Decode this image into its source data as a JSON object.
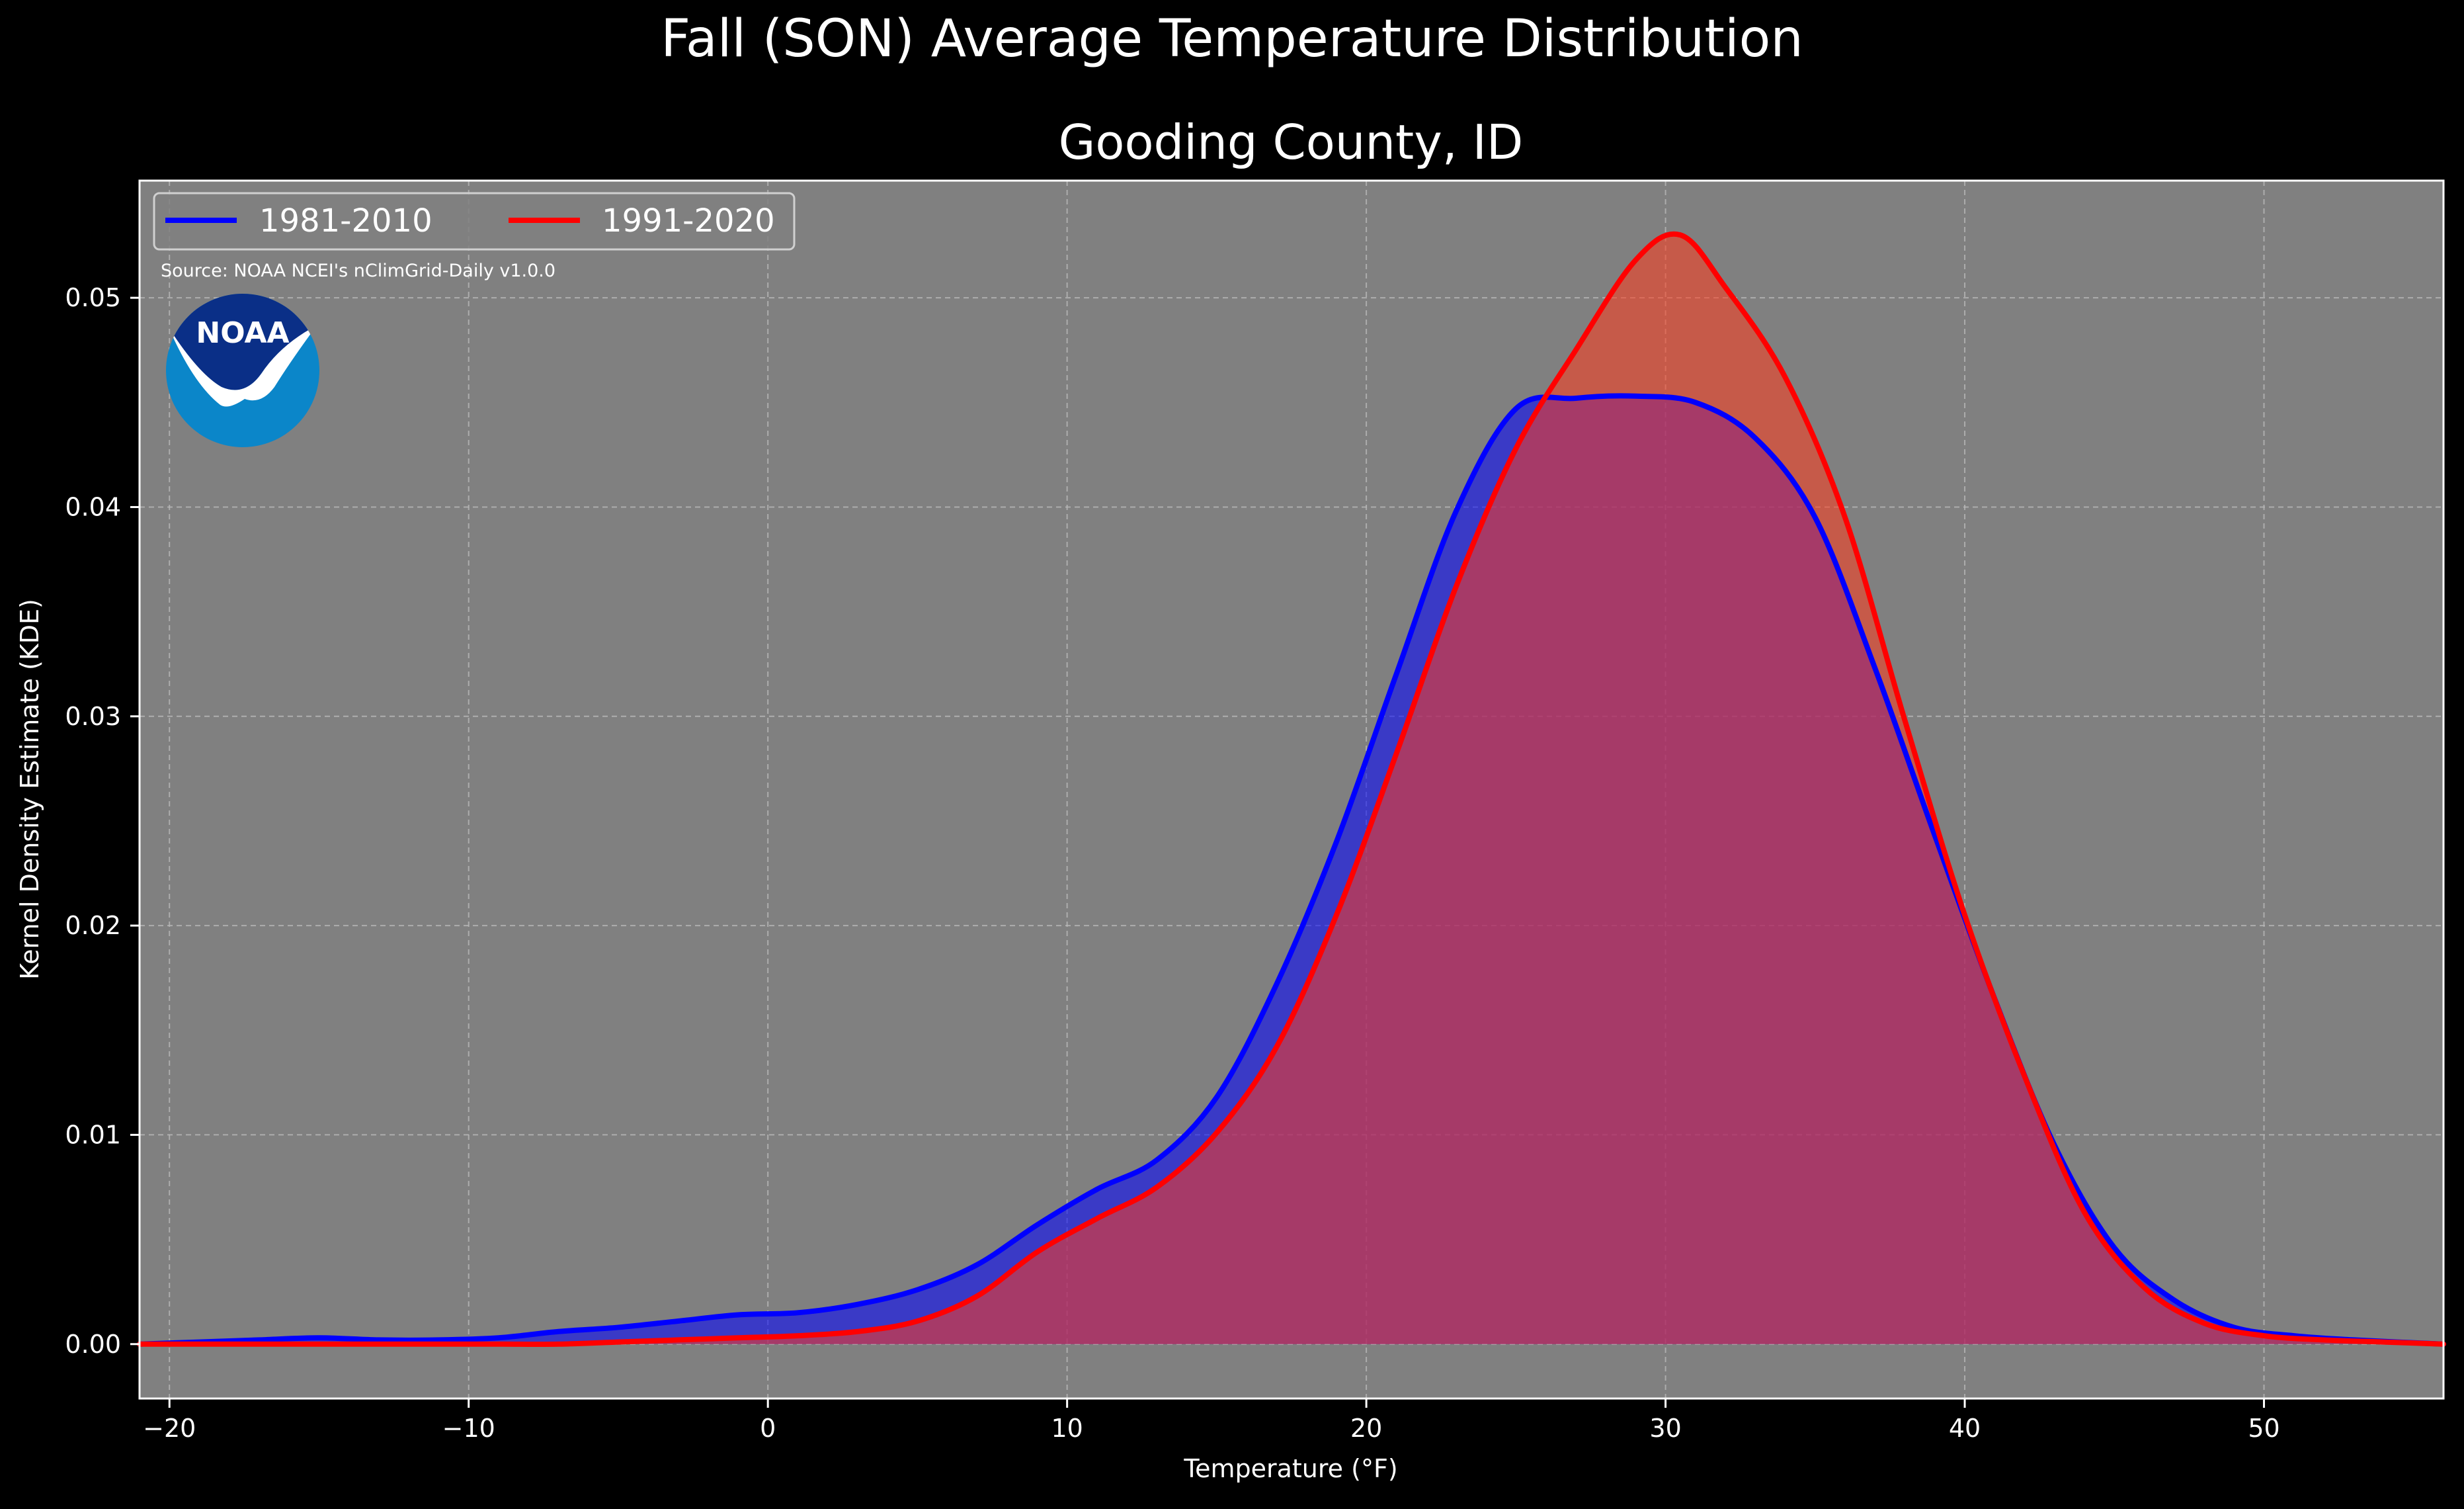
{
  "figure": {
    "suptitle": "Fall (SON) Average Temperature Distribution",
    "source_note": "Source: NOAA NCEI's nClimGrid-Daily v1.0.0",
    "logo": {
      "text": "NOAA",
      "icon": "noaa-logo",
      "colors": {
        "top": "#0a2f87",
        "bottom": "#0b86c9",
        "bird": "#ffffff"
      }
    },
    "colors": {
      "figure_background": "#000000",
      "plot_background": "#808080",
      "grid": "#b8b8b8",
      "text": "#ffffff"
    }
  },
  "chart_data": {
    "type": "area",
    "title": "Gooding County, ID",
    "xlabel": "Temperature (°F)",
    "ylabel": "Kernel Density Estimate (KDE)",
    "xlim": [
      -21,
      56
    ],
    "ylim": [
      -0.0026,
      0.0556
    ],
    "xticks": [
      -20,
      -10,
      0,
      10,
      20,
      30,
      40,
      50
    ],
    "xtick_labels": [
      "−20",
      "−10",
      "0",
      "10",
      "20",
      "30",
      "40",
      "50"
    ],
    "yticks": [
      0.0,
      0.01,
      0.02,
      0.03,
      0.04,
      0.05
    ],
    "ytick_labels": [
      "0.00",
      "0.01",
      "0.02",
      "0.03",
      "0.04",
      "0.05"
    ],
    "grid": true,
    "legend": {
      "placement": "top-left",
      "columns": 2
    },
    "series": [
      {
        "name": "1981-2010",
        "line_color": "#0000ff",
        "fill_color": "#0000ff",
        "x": [
          -21,
          -19,
          -17,
          -15,
          -13,
          -11,
          -9,
          -7,
          -5,
          -3,
          -1,
          1,
          3,
          5,
          7,
          9,
          11,
          13,
          15,
          17,
          19,
          21,
          23,
          25,
          27,
          29,
          31,
          33,
          35,
          37,
          39,
          41,
          43,
          45,
          47,
          49,
          51,
          53,
          56
        ],
        "y": [
          0.0,
          0.0001,
          0.0002,
          0.0003,
          0.0002,
          0.0002,
          0.0003,
          0.0006,
          0.0008,
          0.0011,
          0.0014,
          0.0015,
          0.0019,
          0.0026,
          0.0038,
          0.0057,
          0.0074,
          0.0088,
          0.0118,
          0.0172,
          0.024,
          0.032,
          0.0398,
          0.0447,
          0.0452,
          0.0453,
          0.045,
          0.0433,
          0.0395,
          0.0323,
          0.0243,
          0.0165,
          0.0095,
          0.0046,
          0.0021,
          0.0008,
          0.0004,
          0.0002,
          0.0
        ]
      },
      {
        "name": "1991-2020",
        "line_color": "#ff0000",
        "fill_color": "#ff3b1c",
        "x": [
          -21,
          -19,
          -17,
          -15,
          -13,
          -11,
          -9,
          -7,
          -5,
          -3,
          -1,
          1,
          3,
          5,
          7,
          9,
          11,
          13,
          15,
          17,
          19,
          21,
          23,
          25,
          27,
          29,
          30.5,
          32,
          34,
          36,
          38,
          40,
          42,
          44,
          46,
          48,
          50,
          52,
          54,
          56
        ],
        "y": [
          0.0,
          0.0,
          0.0,
          0.0,
          0.0,
          0.0,
          0.0,
          0.0,
          0.0001,
          0.0002,
          0.0003,
          0.0004,
          0.0006,
          0.0011,
          0.0023,
          0.0044,
          0.006,
          0.0075,
          0.0101,
          0.0142,
          0.0205,
          0.0282,
          0.0362,
          0.0428,
          0.0475,
          0.0518,
          0.053,
          0.0505,
          0.0462,
          0.0395,
          0.0298,
          0.0205,
          0.0128,
          0.0063,
          0.0027,
          0.001,
          0.0004,
          0.0002,
          0.0001,
          0.0
        ]
      }
    ]
  }
}
